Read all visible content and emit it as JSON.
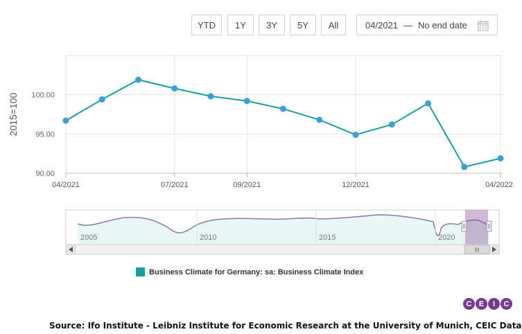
{
  "toolbar": {
    "buttons": [
      "YTD",
      "1Y",
      "3Y",
      "5Y",
      "All"
    ],
    "date_from": "04/2021",
    "date_separator": "—",
    "date_to": "No end date",
    "calendar_icon": "calendar-icon"
  },
  "chart_data": {
    "type": "line",
    "ylabel": "2015=100",
    "ylim": [
      90,
      105
    ],
    "yticks": [
      "90.00",
      "95.00",
      "100.00"
    ],
    "ytick_values": [
      90,
      95,
      100
    ],
    "xtick_labels": [
      "04/2021",
      "07/2021",
      "09/2021",
      "12/2021",
      "04/2022"
    ],
    "xtick_index": [
      0,
      3,
      5,
      8,
      12
    ],
    "x": [
      "04/2021",
      "05/2021",
      "06/2021",
      "07/2021",
      "08/2021",
      "09/2021",
      "10/2021",
      "11/2021",
      "12/2021",
      "01/2022",
      "02/2022",
      "03/2022",
      "04/2022"
    ],
    "series": [
      {
        "name": "Business Climate for Germany: sa: Business Climate Index",
        "color": "#1a9e9b",
        "values": [
          96.7,
          99.4,
          101.9,
          100.8,
          99.8,
          99.2,
          98.2,
          96.8,
          94.9,
          96.2,
          98.9,
          90.8,
          91.9
        ]
      }
    ],
    "grid": true
  },
  "navigator": {
    "year_labels": [
      "2005",
      "2010",
      "2015",
      "2020"
    ],
    "scroll_grip": "III"
  },
  "legend": {
    "color": "#1a9e9b",
    "label": "Business Climate for Germany: sa: Business Climate Index"
  },
  "logo": {
    "letters": [
      "C",
      "E",
      "I",
      "C"
    ],
    "colors": [
      "#7a3a8c",
      "#7a3a8c",
      "#7a3a8c",
      "#7a3a8c"
    ]
  },
  "source": "Source: Ifo Institute - Leibniz Institute for Economic Research at the University of Munich, CEIC Data"
}
